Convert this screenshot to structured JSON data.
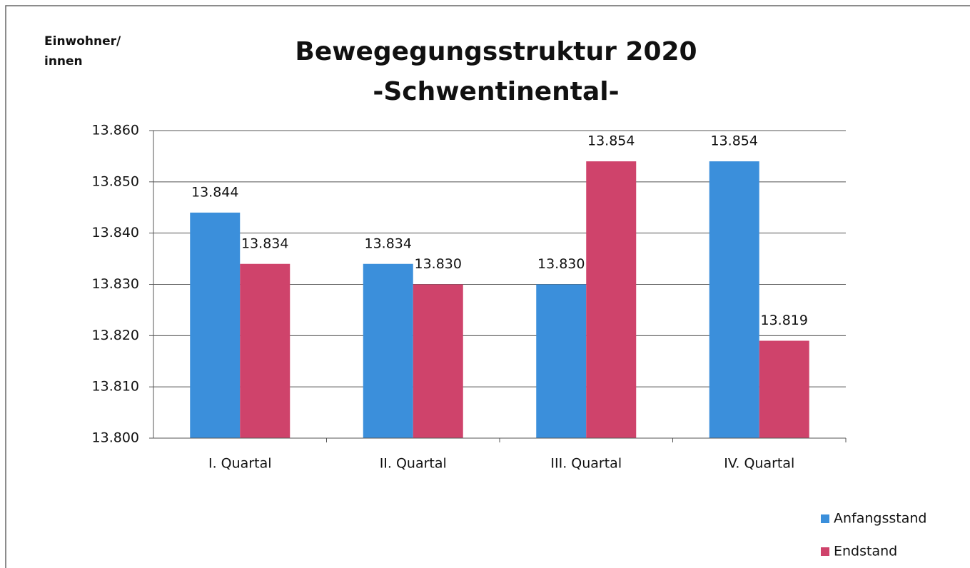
{
  "chart_data": {
    "type": "bar",
    "title": "Bewegegungsstruktur 2020",
    "subtitle": "-Schwentinental-",
    "ylabel": "Einwohner/ innen",
    "categories": [
      "I. Quartal",
      "II. Quartal",
      "III. Quartal",
      "IV. Quartal"
    ],
    "series": [
      {
        "name": "Anfangsstand",
        "color": "#3b8fdb",
        "values": [
          13844,
          13834,
          13830,
          13854
        ],
        "value_labels": [
          "13.844",
          "13.834",
          "13.830",
          "13.854"
        ]
      },
      {
        "name": "Endstand",
        "color": "#cf436b",
        "values": [
          13834,
          13830,
          13854,
          13819
        ],
        "value_labels": [
          "13.834",
          "13.830",
          "13.854",
          "13.819"
        ]
      }
    ],
    "ylim": [
      13800,
      13860
    ],
    "yticks": [
      {
        "value": 13800,
        "label": "13.800"
      },
      {
        "value": 13810,
        "label": "13.810"
      },
      {
        "value": 13820,
        "label": "13.820"
      },
      {
        "value": 13830,
        "label": "13.830"
      },
      {
        "value": 13840,
        "label": "13.840"
      },
      {
        "value": 13850,
        "label": "13.850"
      },
      {
        "value": 13860,
        "label": "13.860"
      }
    ],
    "grid": true,
    "legend": "bottom-right"
  }
}
